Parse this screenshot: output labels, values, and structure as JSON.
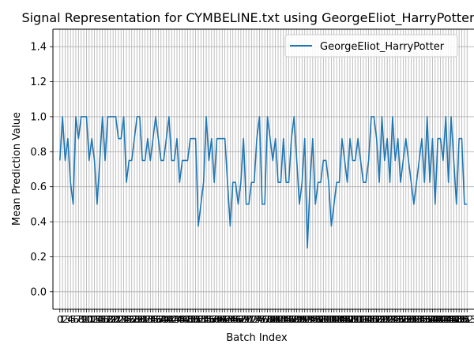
{
  "chart_data": {
    "type": "line",
    "title": "Signal Representation for CYMBELINE.txt using GeorgeEliot_HarryPotter",
    "xlabel": "Batch Index",
    "ylabel": "Mean Prediction Value",
    "ylim": [
      -0.1,
      1.5
    ],
    "yticks": [
      "0.0",
      "0.2",
      "0.4",
      "0.6",
      "0.8",
      "1.0",
      "1.2",
      "1.4"
    ],
    "xlim": [
      -2.6,
      155.6
    ],
    "grid": true,
    "legend_position": "top-right",
    "series_color": "#1f77b4",
    "series": [
      {
        "name": "GeorgeEliot_HarryPotter",
        "x": [
          0,
          1,
          2,
          3,
          4,
          5,
          6,
          7,
          8,
          9,
          10,
          11,
          12,
          13,
          14,
          15,
          16,
          17,
          18,
          19,
          20,
          21,
          22,
          23,
          24,
          25,
          26,
          27,
          28,
          29,
          30,
          31,
          32,
          33,
          34,
          35,
          36,
          37,
          38,
          39,
          40,
          41,
          42,
          43,
          44,
          45,
          46,
          47,
          48,
          49,
          50,
          51,
          52,
          53,
          54,
          55,
          56,
          57,
          58,
          59,
          60,
          61,
          62,
          63,
          64,
          65,
          66,
          67,
          68,
          69,
          70,
          71,
          72,
          73,
          74,
          75,
          76,
          77,
          78,
          79,
          80,
          81,
          82,
          83,
          84,
          85,
          86,
          87,
          88,
          89,
          90,
          91,
          92,
          93,
          94,
          95,
          96,
          97,
          98,
          99,
          100,
          101,
          102,
          103,
          104,
          105,
          106,
          107,
          108,
          109,
          110,
          111,
          112,
          113,
          114,
          115,
          116,
          117,
          118,
          119,
          120,
          121,
          122,
          123,
          124,
          125,
          126,
          127,
          128,
          129,
          130,
          131,
          132,
          133,
          134,
          135,
          136,
          137,
          138,
          139,
          140,
          141,
          142,
          143,
          144,
          145,
          146,
          147,
          148,
          149,
          150,
          151,
          152,
          153
        ],
        "values": [
          0.75,
          1.0,
          0.75,
          0.875,
          0.625,
          0.5,
          1.0,
          0.875,
          1.0,
          1.0,
          1.0,
          0.75,
          0.875,
          0.75,
          0.5,
          0.75,
          1.0,
          0.75,
          1.0,
          1.0,
          1.0,
          1.0,
          0.875,
          0.875,
          1.0,
          0.625,
          0.75,
          0.75,
          0.875,
          1.0,
          1.0,
          0.75,
          0.75,
          0.875,
          0.75,
          0.875,
          1.0,
          0.875,
          0.75,
          0.75,
          0.875,
          1.0,
          0.75,
          0.75,
          0.875,
          0.625,
          0.75,
          0.75,
          0.75,
          0.875,
          0.875,
          0.875,
          0.375,
          0.5,
          0.625,
          1.0,
          0.75,
          0.875,
          0.625,
          0.875,
          0.875,
          0.875,
          0.875,
          0.625,
          0.375,
          0.625,
          0.625,
          0.5,
          0.625,
          0.875,
          0.5,
          0.5,
          0.625,
          0.625,
          0.875,
          1.0,
          0.5,
          0.5,
          1.0,
          0.875,
          0.75,
          0.875,
          0.625,
          0.625,
          0.875,
          0.625,
          0.625,
          0.875,
          1.0,
          0.75,
          0.5,
          0.625,
          0.875,
          0.25,
          0.625,
          0.875,
          0.5,
          0.625,
          0.625,
          0.75,
          0.75,
          0.625,
          0.375,
          0.5,
          0.625,
          0.625,
          0.875,
          0.75,
          0.625,
          0.875,
          0.75,
          0.75,
          0.875,
          0.75,
          0.625,
          0.625,
          0.75,
          1.0,
          1.0,
          0.875,
          0.625,
          1.0,
          0.75,
          0.875,
          0.625,
          1.0,
          0.75,
          0.875,
          0.625,
          0.75,
          0.875,
          0.75,
          0.625,
          0.5,
          0.625,
          0.75,
          0.875,
          0.625,
          1.0,
          0.625,
          0.875,
          0.5,
          0.875,
          0.875,
          0.75,
          1.0,
          0.625,
          1.0,
          0.75,
          0.5,
          0.875,
          0.875,
          0.5,
          0.5
        ]
      }
    ]
  }
}
